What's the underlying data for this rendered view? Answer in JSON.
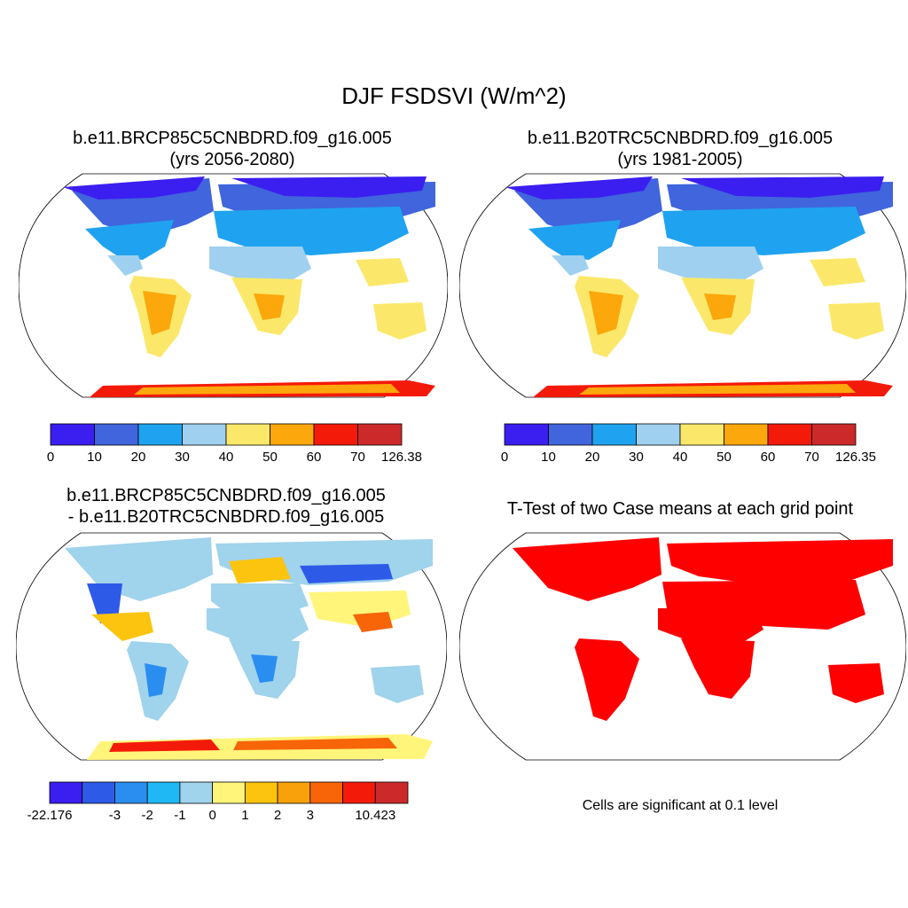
{
  "figure": {
    "title": "DJF FSDSVI (W/m^2)"
  },
  "chart_data": [
    {
      "type": "heatmap",
      "title_line1": "b.e11.BRCP85C5CNBDRD.f09_g16.005",
      "title_line2": "(yrs 2056-2080)",
      "colorbar": {
        "tick_labels": [
          "0",
          "10",
          "20",
          "30",
          "40",
          "50",
          "60",
          "70",
          "126.38"
        ],
        "colors": [
          "#3b1ef0",
          "#4065dc",
          "#1fa3f0",
          "#9fd0ef",
          "#fbe86a",
          "#fca70c",
          "#f41a0a",
          "#cc2a2a"
        ]
      }
    },
    {
      "type": "heatmap",
      "title_line1": "b.e11.B20TRC5CNBDRD.f09_g16.005",
      "title_line2": "(yrs 1981-2005)",
      "colorbar": {
        "tick_labels": [
          "0",
          "10",
          "20",
          "30",
          "40",
          "50",
          "60",
          "70",
          "126.35"
        ],
        "colors": [
          "#3b1ef0",
          "#4065dc",
          "#1fa3f0",
          "#9fd0ef",
          "#fbe86a",
          "#fca70c",
          "#f41a0a",
          "#cc2a2a"
        ]
      }
    },
    {
      "type": "heatmap",
      "title_line1": "b.e11.BRCP85C5CNBDRD.f09_g16.005",
      "title_line2": "- b.e11.B20TRC5CNBDRD.f09_g16.005",
      "colorbar": {
        "tick_labels": [
          "-22.176",
          "",
          "-3",
          "-2",
          "-1",
          "0",
          "1",
          "2",
          "3",
          "",
          "10.423"
        ],
        "colors": [
          "#3b1ef0",
          "#2e5ae8",
          "#2a8ef0",
          "#1fb8f5",
          "#a0d3ec",
          "#fff57a",
          "#fcc40e",
          "#f9a10a",
          "#f76508",
          "#f41a0a",
          "#cc2a2a"
        ]
      }
    },
    {
      "type": "heatmap",
      "title_line1": "T-Test of two Case means at each grid point",
      "title_line2": "",
      "note": "Cells are significant at 0.1 level",
      "colors": {
        "significant": "#ff0000"
      }
    }
  ]
}
